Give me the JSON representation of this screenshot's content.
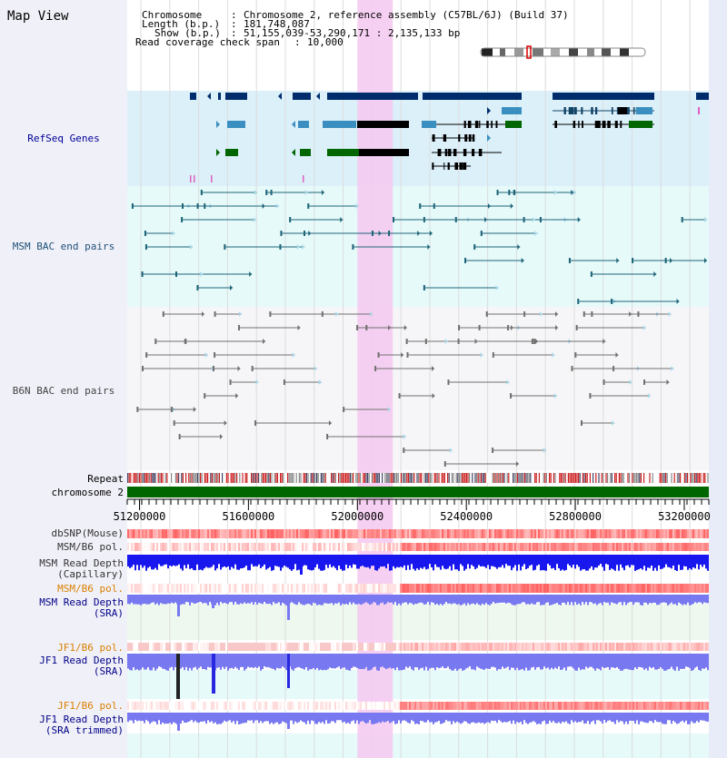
{
  "view": {
    "title": "Map View",
    "info": {
      "chromosome_label": "Chromosome",
      "chromosome_value": "Chromosome 2, reference assembly (C57BL/6J) (Build 37)",
      "length_label": "Length (b.p.)",
      "length_value": "181,748,087",
      "show_label": "Show (b.p.)",
      "show_value": "51,155,039-53,290,171 : 2,135,133 bp",
      "coverage_label": "Read coverage check span",
      "coverage_value": "10,000"
    }
  },
  "tracks": {
    "refseq": "RefSeq Genes",
    "msm_bac": "MSM BAC end pairs",
    "b6n_bac": "B6N BAC end pairs",
    "repeat": "Repeat",
    "chromosome": "chromosome 2",
    "dbsnp": "dbSNP(Mouse)",
    "msm_b6_pol": "MSM/B6 pol.",
    "msm_depth_cap_1": "MSM Read Depth",
    "msm_depth_cap_2": "(Capillary)",
    "msm_b6_pol_sra": "MSM/B6 pol.",
    "msm_depth_sra_1": "MSM Read Depth",
    "msm_depth_sra_2": "(SRA)",
    "jf1_b6_pol": "JF1/B6 pol.",
    "jf1_depth_sra_1": "JF1 Read Depth",
    "jf1_depth_sra_2": "(SRA)",
    "jf1_b6_pol_trim": "JF1/B6 pol.",
    "jf1_depth_trim_1": "JF1 Read Depth",
    "jf1_depth_trim_2": "(SRA trimmed)"
  },
  "axis": {
    "ticks": [
      "51200000",
      "51600000",
      "52000000",
      "52400000",
      "52800000",
      "53200000"
    ],
    "range": [
      51155039,
      53290171
    ]
  },
  "highlight_range": [
    52000000,
    52130000
  ],
  "colors": {
    "refseq_dark": "#002c6c",
    "refseq_mid": "#3b8fc0",
    "refseq_green": "#006600",
    "msm_bac": "#1e6478",
    "b6n_bac": "#707070",
    "highlight": "#f5c8f0",
    "chromosome": "#006600",
    "snp_red": "#ee3333",
    "depth_blue": "#1818ee",
    "depth_light": "#7878f0",
    "label_orange": "#d98000",
    "label_blue": "#000088"
  }
}
